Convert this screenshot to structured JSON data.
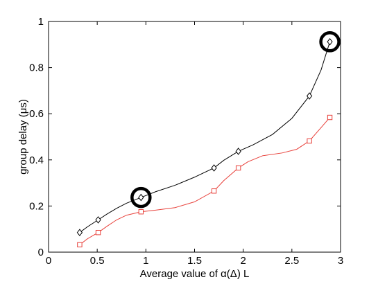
{
  "chart_data": {
    "type": "line",
    "title": "",
    "xlabel": "Average value of α(Δ) L",
    "ylabel": "group delay (μs)",
    "xlim": [
      0,
      3
    ],
    "ylim": [
      0,
      1
    ],
    "xticks": [
      0,
      0.5,
      1,
      1.5,
      2,
      2.5,
      3
    ],
    "yticks": [
      0,
      0.2,
      0.4,
      0.6,
      0.8,
      1
    ],
    "xtick_labels": [
      "0",
      "0.5",
      "1",
      "1.5",
      "2",
      "2.5",
      "3"
    ],
    "ytick_labels": [
      "0",
      "0.2",
      "0.4",
      "0.6",
      "0.8",
      "1"
    ],
    "grid": false,
    "legend": "none",
    "series": [
      {
        "color": "#000000",
        "marker": "diamond",
        "x": [
          0.32,
          0.51,
          0.95,
          1.7,
          1.95,
          2.68,
          2.89
        ],
        "y": [
          0.085,
          0.14,
          0.237,
          0.365,
          0.437,
          0.677,
          0.912
        ],
        "curve": {
          "x": [
            0.32,
            0.4,
            0.51,
            0.6,
            0.7,
            0.8,
            0.95,
            1.1,
            1.3,
            1.5,
            1.7,
            1.8,
            1.95,
            2.1,
            2.3,
            2.5,
            2.68,
            2.8,
            2.89
          ],
          "y": [
            0.085,
            0.11,
            0.14,
            0.165,
            0.19,
            0.212,
            0.237,
            0.262,
            0.29,
            0.325,
            0.365,
            0.398,
            0.437,
            0.465,
            0.51,
            0.58,
            0.677,
            0.79,
            0.912
          ]
        }
      },
      {
        "color": "#e8403a",
        "marker": "square",
        "x": [
          0.32,
          0.51,
          0.95,
          1.7,
          1.95,
          2.68,
          2.89
        ],
        "y": [
          0.032,
          0.085,
          0.175,
          0.265,
          0.365,
          0.482,
          0.584
        ],
        "curve": {
          "x": [
            0.32,
            0.4,
            0.51,
            0.6,
            0.7,
            0.8,
            0.95,
            1.1,
            1.3,
            1.5,
            1.7,
            1.8,
            1.95,
            2.05,
            2.2,
            2.4,
            2.55,
            2.68,
            2.8,
            2.89
          ],
          "y": [
            0.032,
            0.058,
            0.085,
            0.112,
            0.14,
            0.16,
            0.175,
            0.182,
            0.193,
            0.218,
            0.265,
            0.31,
            0.365,
            0.392,
            0.418,
            0.43,
            0.446,
            0.482,
            0.54,
            0.584
          ]
        }
      }
    ],
    "highlights": [
      {
        "x": 0.95,
        "y": 0.237
      },
      {
        "x": 2.89,
        "y": 0.912
      }
    ]
  }
}
